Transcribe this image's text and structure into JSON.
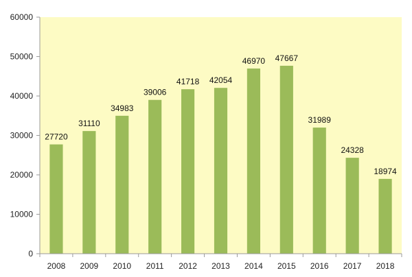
{
  "chart_data": {
    "type": "bar",
    "categories": [
      "2008",
      "2009",
      "2010",
      "2011",
      "2012",
      "2013",
      "2014",
      "2015",
      "2016",
      "2017",
      "2018"
    ],
    "values": [
      27720,
      31110,
      34983,
      39006,
      41718,
      42054,
      46970,
      47667,
      31989,
      24328,
      18974
    ],
    "data_labels": [
      "27720",
      "31110",
      "34983",
      "39006",
      "41718",
      "42054",
      "46970",
      "47667",
      "31989",
      "24328",
      "18974"
    ],
    "y_ticks": [
      "0",
      "10000",
      "20000",
      "30000",
      "40000",
      "50000",
      "60000"
    ],
    "ylim": [
      0,
      60000
    ],
    "title": "",
    "xlabel": "",
    "ylabel": "",
    "grid": false,
    "legend": "none",
    "colors": {
      "bar": "#9bbb59",
      "plot_background": "#fdfbc4",
      "axis": "#9a9a9a"
    }
  }
}
